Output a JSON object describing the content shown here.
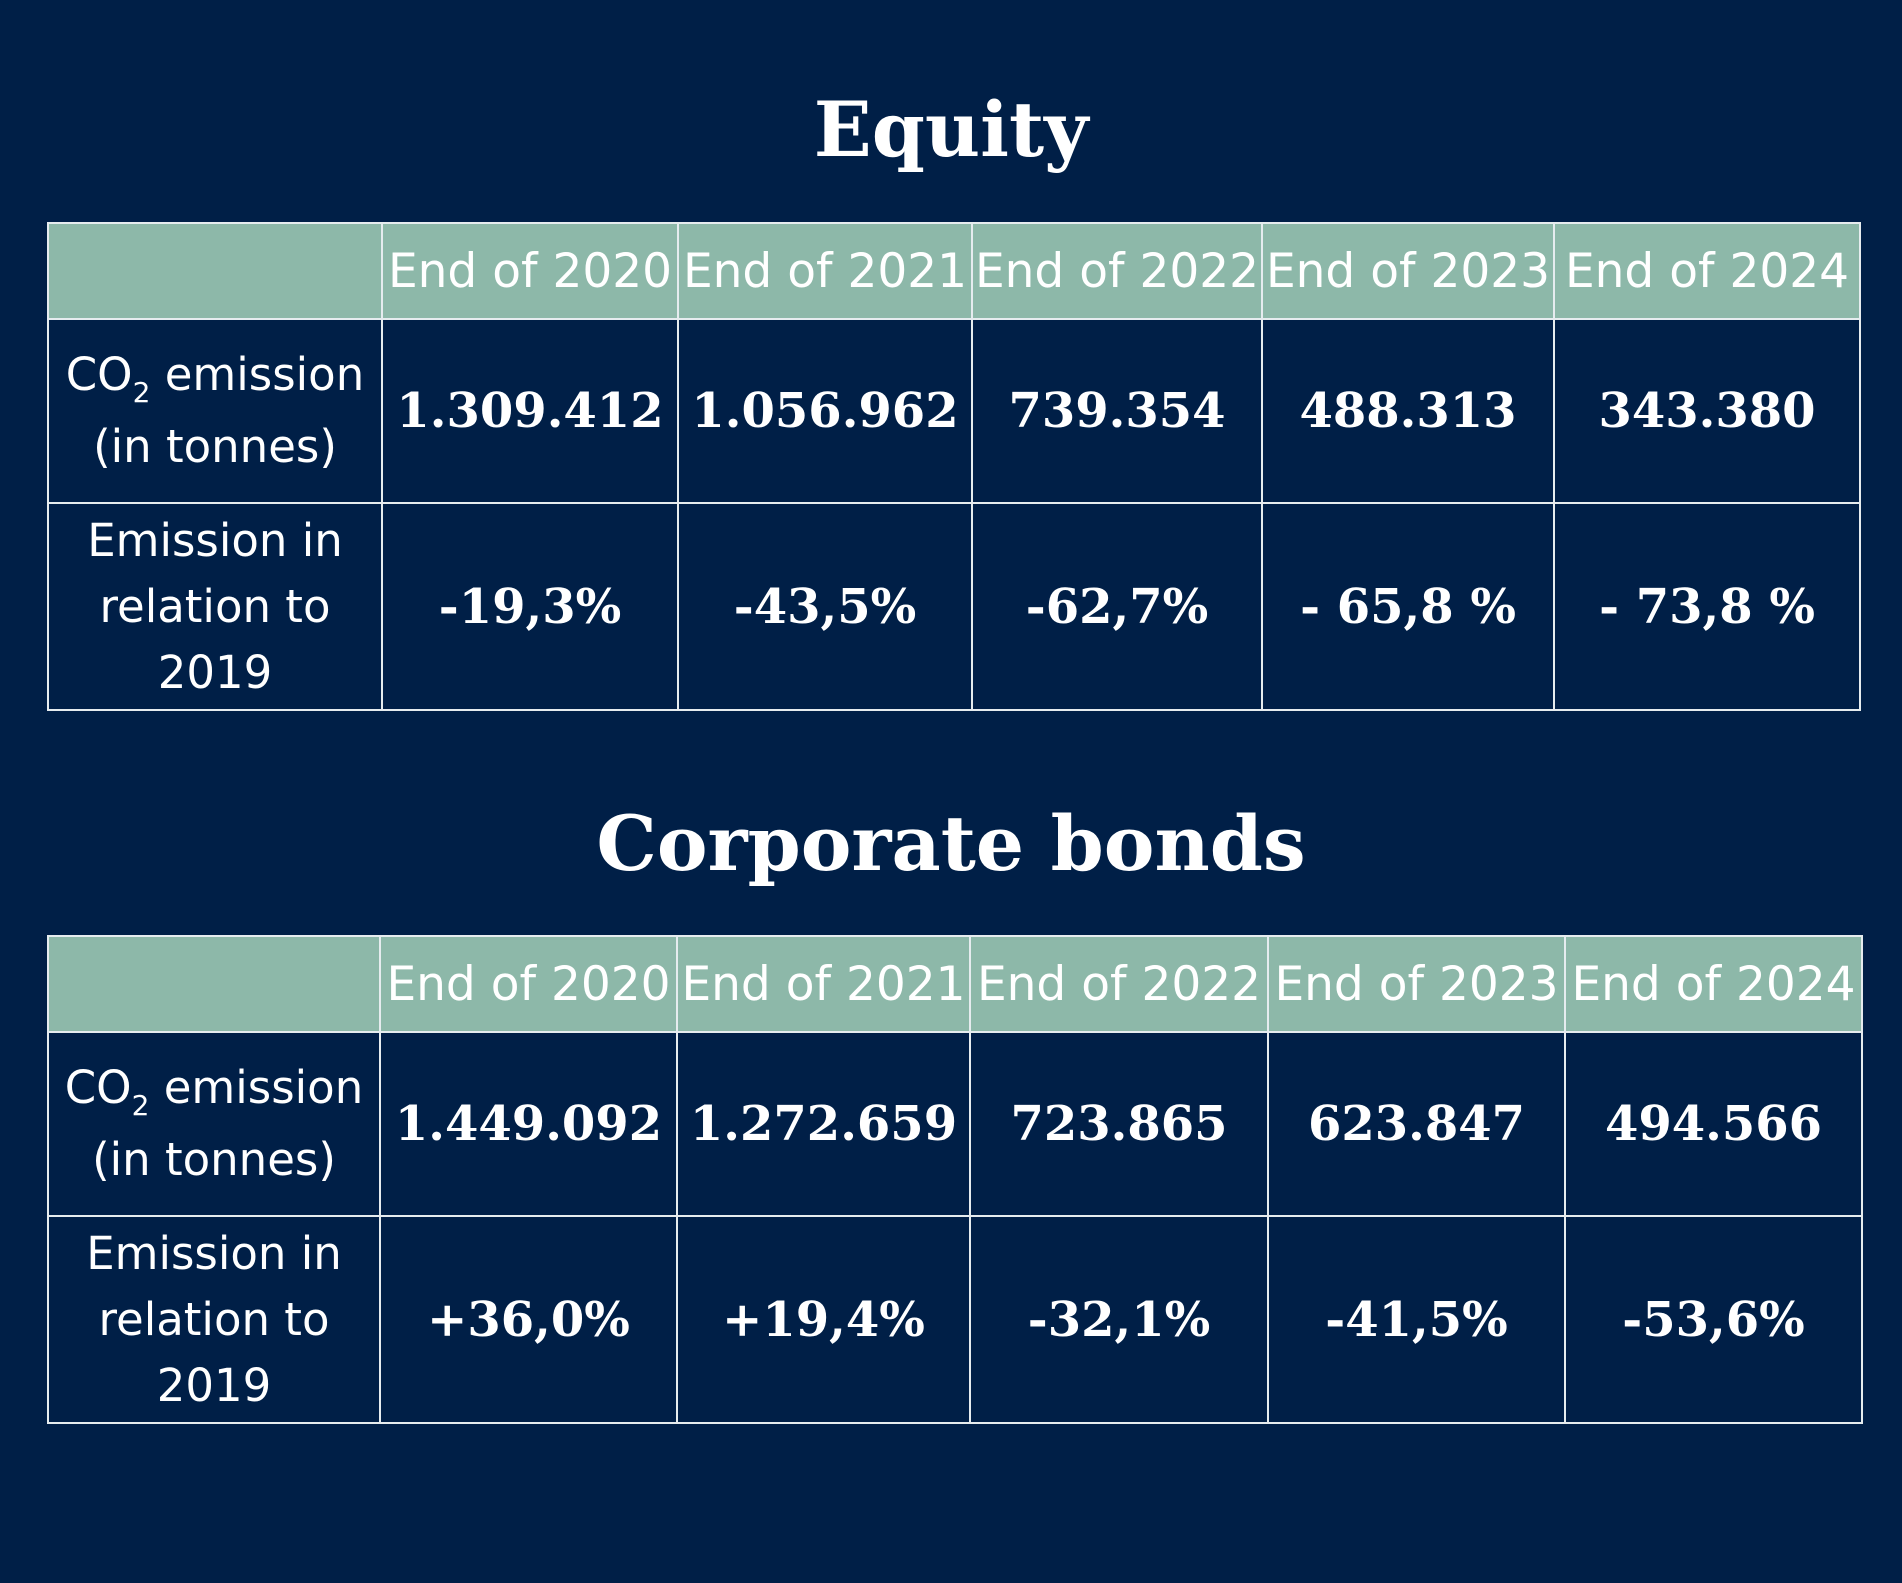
{
  "equity": {
    "title": "Equity",
    "columns": [
      "End of 2020",
      "End of 2021",
      "End of 2022",
      "End of 2023",
      "End of 2024"
    ],
    "co2_label": {
      "main": "CO",
      "sub": "2",
      "rest": " emission",
      "line2": "(in tonnes)"
    },
    "co2_values": [
      "1.309.412",
      "1.056.962",
      "739.354",
      "488.313",
      "343.380"
    ],
    "relation_label": {
      "line1": "Emission in",
      "line2": "relation to",
      "line3": "2019"
    },
    "relation_values": [
      "-19,3%",
      "-43,5%",
      "-62,7%",
      "- 65,8 %",
      "- 73,8 %"
    ]
  },
  "bonds": {
    "title": "Corporate bonds",
    "columns": [
      "End of 2020",
      "End of 2021",
      "End of 2022",
      "End of 2023",
      "End of 2024"
    ],
    "co2_label": {
      "main": "CO",
      "sub": "2",
      "rest": " emission",
      "line2": "(in tonnes)"
    },
    "co2_values": [
      "1.449.092",
      "1.272.659",
      "723.865",
      "623.847",
      "494.566"
    ],
    "relation_label": {
      "line1": "Emission in",
      "line2": "relation to",
      "line3": "2019"
    },
    "relation_values": [
      "+36,0%",
      "+19,4%",
      "-32,1%",
      "-41,5%",
      "-53,6%"
    ]
  },
  "colors": {
    "background": "#001f47",
    "header": "#8db8a9",
    "border": "#e6ecef",
    "text": "#ffffff"
  }
}
